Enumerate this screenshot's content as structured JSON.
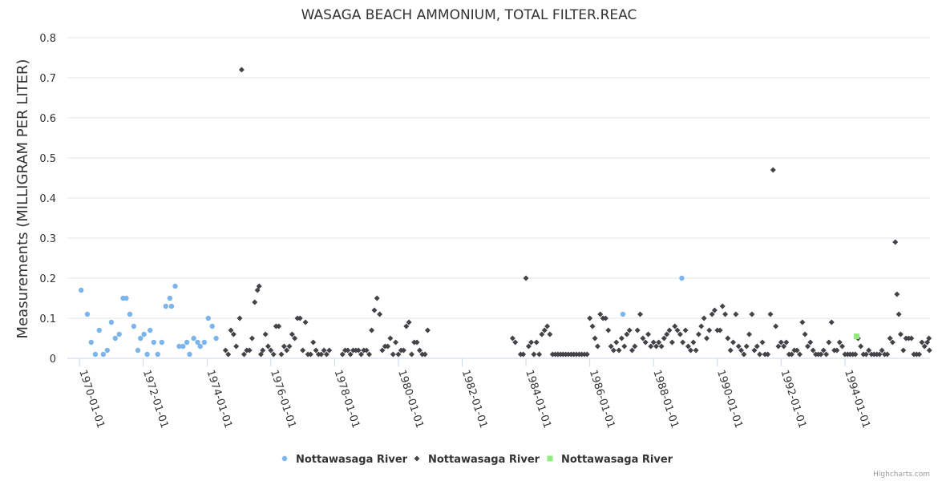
{
  "chart_data": {
    "type": "scatter",
    "title": "WASAGA BEACH AMMONIUM, TOTAL FILTER.REAC",
    "ylabel": "Measurements (MILLIGRAM PER LITER)",
    "xlabel": "",
    "ylim": [
      0,
      0.8
    ],
    "y_ticks": [
      "0",
      "0.1",
      "0.2",
      "0.3",
      "0.4",
      "0.5",
      "0.6",
      "0.7",
      "0.8"
    ],
    "x_ticks": [
      "1970-01-01",
      "1972-01-01",
      "1974-01-01",
      "1976-01-01",
      "1978-01-01",
      "1980-01-01",
      "1982-01-01",
      "1984-01-01",
      "1986-01-01",
      "1988-01-01",
      "1990-01-01",
      "1992-01-01",
      "1994-01-01"
    ],
    "xlim": [
      "1969-08-15",
      "1996-09-01"
    ],
    "grid": true,
    "legend": "bottom-center",
    "series": [
      {
        "name": "Nottawasaga River",
        "marker": "circle",
        "color": "#7cb5ec",
        "points": [
          [
            "1970-01-20",
            0.17
          ],
          [
            "1970-04-01",
            0.11
          ],
          [
            "1970-05-15",
            0.04
          ],
          [
            "1970-07-01",
            0.01
          ],
          [
            "1970-08-15",
            0.07
          ],
          [
            "1970-10-01",
            0.01
          ],
          [
            "1970-11-15",
            0.02
          ],
          [
            "1971-01-01",
            0.09
          ],
          [
            "1971-02-15",
            0.05
          ],
          [
            "1971-04-01",
            0.06
          ],
          [
            "1971-05-15",
            0.15
          ],
          [
            "1971-06-20",
            0.15
          ],
          [
            "1971-08-01",
            0.11
          ],
          [
            "1971-09-15",
            0.08
          ],
          [
            "1971-11-01",
            0.02
          ],
          [
            "1971-12-01",
            0.05
          ],
          [
            "1972-01-10",
            0.06
          ],
          [
            "1972-02-15",
            0.01
          ],
          [
            "1972-03-20",
            0.07
          ],
          [
            "1972-05-01",
            0.04
          ],
          [
            "1972-06-15",
            0.01
          ],
          [
            "1972-08-01",
            0.04
          ],
          [
            "1972-09-15",
            0.13
          ],
          [
            "1972-11-01",
            0.15
          ],
          [
            "1972-11-20",
            0.13
          ],
          [
            "1973-01-01",
            0.18
          ],
          [
            "1973-02-15",
            0.03
          ],
          [
            "1973-04-01",
            0.03
          ],
          [
            "1973-05-15",
            0.04
          ],
          [
            "1973-06-15",
            0.01
          ],
          [
            "1973-08-01",
            0.05
          ],
          [
            "1973-09-15",
            0.04
          ],
          [
            "1973-10-15",
            0.03
          ],
          [
            "1973-12-01",
            0.04
          ],
          [
            "1974-01-15",
            0.1
          ],
          [
            "1974-03-01",
            0.08
          ],
          [
            "1974-04-15",
            0.05
          ],
          [
            "1987-01-15",
            0.11
          ],
          [
            "1988-11-20",
            0.2
          ]
        ]
      },
      {
        "name": "Nottawasaga River",
        "marker": "diamond",
        "color": "#434348",
        "points": [
          [
            "1974-08-01",
            0.02
          ],
          [
            "1974-09-01",
            0.01
          ],
          [
            "1974-10-01",
            0.07
          ],
          [
            "1974-11-01",
            0.06
          ],
          [
            "1974-12-01",
            0.03
          ],
          [
            "1975-01-10",
            0.1
          ],
          [
            "1975-02-01",
            0.72
          ],
          [
            "1975-03-01",
            0.01
          ],
          [
            "1975-04-01",
            0.02
          ],
          [
            "1975-05-01",
            0.02
          ],
          [
            "1975-06-01",
            0.05
          ],
          [
            "1975-07-01",
            0.14
          ],
          [
            "1975-08-01",
            0.17
          ],
          [
            "1975-08-20",
            0.18
          ],
          [
            "1975-09-10",
            0.01
          ],
          [
            "1975-10-01",
            0.02
          ],
          [
            "1975-11-01",
            0.06
          ],
          [
            "1975-12-01",
            0.03
          ],
          [
            "1976-01-01",
            0.02
          ],
          [
            "1976-02-01",
            0.01
          ],
          [
            "1976-03-01",
            0.08
          ],
          [
            "1976-04-01",
            0.08
          ],
          [
            "1976-05-01",
            0.01
          ],
          [
            "1976-06-01",
            0.03
          ],
          [
            "1976-07-01",
            0.02
          ],
          [
            "1976-08-01",
            0.03
          ],
          [
            "1976-09-01",
            0.06
          ],
          [
            "1976-10-01",
            0.05
          ],
          [
            "1976-11-01",
            0.1
          ],
          [
            "1976-12-01",
            0.1
          ],
          [
            "1977-01-01",
            0.02
          ],
          [
            "1977-02-01",
            0.09
          ],
          [
            "1977-03-01",
            0.01
          ],
          [
            "1977-04-01",
            0.01
          ],
          [
            "1977-05-01",
            0.04
          ],
          [
            "1977-06-01",
            0.02
          ],
          [
            "1977-07-01",
            0.01
          ],
          [
            "1977-08-01",
            0.01
          ],
          [
            "1977-09-01",
            0.02
          ],
          [
            "1977-10-01",
            0.01
          ],
          [
            "1977-11-01",
            0.02
          ],
          [
            "1978-04-01",
            0.01
          ],
          [
            "1978-05-01",
            0.02
          ],
          [
            "1978-06-01",
            0.02
          ],
          [
            "1978-07-01",
            0.01
          ],
          [
            "1978-08-01",
            0.02
          ],
          [
            "1978-09-01",
            0.02
          ],
          [
            "1978-10-01",
            0.02
          ],
          [
            "1978-11-01",
            0.01
          ],
          [
            "1978-12-01",
            0.02
          ],
          [
            "1979-01-01",
            0.02
          ],
          [
            "1979-02-01",
            0.01
          ],
          [
            "1979-03-01",
            0.07
          ],
          [
            "1979-04-01",
            0.12
          ],
          [
            "1979-05-01",
            0.15
          ],
          [
            "1979-06-01",
            0.11
          ],
          [
            "1979-07-01",
            0.02
          ],
          [
            "1979-08-01",
            0.03
          ],
          [
            "1979-09-01",
            0.03
          ],
          [
            "1979-10-01",
            0.05
          ],
          [
            "1979-11-01",
            0.01
          ],
          [
            "1979-12-01",
            0.04
          ],
          [
            "1980-01-01",
            0.01
          ],
          [
            "1980-02-01",
            0.02
          ],
          [
            "1980-03-01",
            0.02
          ],
          [
            "1980-04-01",
            0.08
          ],
          [
            "1980-05-01",
            0.09
          ],
          [
            "1980-06-01",
            0.01
          ],
          [
            "1980-07-01",
            0.04
          ],
          [
            "1980-08-01",
            0.04
          ],
          [
            "1980-09-01",
            0.02
          ],
          [
            "1980-10-01",
            0.01
          ],
          [
            "1980-11-01",
            0.01
          ],
          [
            "1980-12-01",
            0.07
          ],
          [
            "1983-08-01",
            0.05
          ],
          [
            "1983-09-01",
            0.04
          ],
          [
            "1983-11-01",
            0.01
          ],
          [
            "1983-12-01",
            0.01
          ],
          [
            "1984-01-01",
            0.2
          ],
          [
            "1984-02-01",
            0.03
          ],
          [
            "1984-03-01",
            0.04
          ],
          [
            "1984-04-01",
            0.01
          ],
          [
            "1984-05-01",
            0.04
          ],
          [
            "1984-06-01",
            0.01
          ],
          [
            "1984-07-01",
            0.06
          ],
          [
            "1984-08-01",
            0.07
          ],
          [
            "1984-09-01",
            0.08
          ],
          [
            "1984-10-01",
            0.06
          ],
          [
            "1984-11-01",
            0.01
          ],
          [
            "1984-12-01",
            0.01
          ],
          [
            "1985-01-01",
            0.01
          ],
          [
            "1985-02-01",
            0.01
          ],
          [
            "1985-03-01",
            0.01
          ],
          [
            "1985-04-01",
            0.01
          ],
          [
            "1985-05-01",
            0.01
          ],
          [
            "1985-06-01",
            0.01
          ],
          [
            "1985-07-01",
            0.01
          ],
          [
            "1985-08-01",
            0.01
          ],
          [
            "1985-09-01",
            0.01
          ],
          [
            "1985-10-01",
            0.01
          ],
          [
            "1985-11-01",
            0.01
          ],
          [
            "1985-12-01",
            0.01
          ],
          [
            "1986-01-01",
            0.1
          ],
          [
            "1986-02-01",
            0.08
          ],
          [
            "1986-03-01",
            0.05
          ],
          [
            "1986-04-01",
            0.03
          ],
          [
            "1986-05-01",
            0.11
          ],
          [
            "1986-06-01",
            0.1
          ],
          [
            "1986-07-01",
            0.1
          ],
          [
            "1986-08-01",
            0.07
          ],
          [
            "1986-09-01",
            0.03
          ],
          [
            "1986-10-01",
            0.02
          ],
          [
            "1986-11-01",
            0.04
          ],
          [
            "1986-12-01",
            0.02
          ],
          [
            "1987-01-01",
            0.05
          ],
          [
            "1987-02-01",
            0.03
          ],
          [
            "1987-03-01",
            0.06
          ],
          [
            "1987-04-01",
            0.07
          ],
          [
            "1987-05-01",
            0.02
          ],
          [
            "1987-06-01",
            0.03
          ],
          [
            "1987-07-01",
            0.07
          ],
          [
            "1987-08-01",
            0.11
          ],
          [
            "1987-09-01",
            0.05
          ],
          [
            "1987-10-01",
            0.04
          ],
          [
            "1987-11-01",
            0.06
          ],
          [
            "1987-12-01",
            0.03
          ],
          [
            "1988-01-01",
            0.04
          ],
          [
            "1988-02-01",
            0.03
          ],
          [
            "1988-03-01",
            0.04
          ],
          [
            "1988-04-01",
            0.03
          ],
          [
            "1988-05-01",
            0.05
          ],
          [
            "1988-06-01",
            0.06
          ],
          [
            "1988-07-01",
            0.07
          ],
          [
            "1988-08-01",
            0.04
          ],
          [
            "1988-09-01",
            0.08
          ],
          [
            "1988-10-01",
            0.07
          ],
          [
            "1988-11-01",
            0.06
          ],
          [
            "1988-12-01",
            0.04
          ],
          [
            "1989-01-01",
            0.07
          ],
          [
            "1989-02-01",
            0.03
          ],
          [
            "1989-03-01",
            0.02
          ],
          [
            "1989-04-01",
            0.04
          ],
          [
            "1989-05-01",
            0.02
          ],
          [
            "1989-06-01",
            0.06
          ],
          [
            "1989-07-01",
            0.08
          ],
          [
            "1989-08-01",
            0.1
          ],
          [
            "1989-09-01",
            0.05
          ],
          [
            "1989-10-01",
            0.07
          ],
          [
            "1989-11-01",
            0.11
          ],
          [
            "1989-12-01",
            0.12
          ],
          [
            "1990-01-01",
            0.07
          ],
          [
            "1990-02-01",
            0.07
          ],
          [
            "1990-03-01",
            0.13
          ],
          [
            "1990-04-01",
            0.11
          ],
          [
            "1990-05-01",
            0.05
          ],
          [
            "1990-06-01",
            0.02
          ],
          [
            "1990-07-01",
            0.04
          ],
          [
            "1990-08-01",
            0.11
          ],
          [
            "1990-09-01",
            0.03
          ],
          [
            "1990-10-01",
            0.02
          ],
          [
            "1990-11-01",
            0.01
          ],
          [
            "1990-12-01",
            0.03
          ],
          [
            "1991-01-01",
            0.06
          ],
          [
            "1991-02-01",
            0.11
          ],
          [
            "1991-03-01",
            0.02
          ],
          [
            "1991-04-01",
            0.03
          ],
          [
            "1991-05-01",
            0.01
          ],
          [
            "1991-06-01",
            0.04
          ],
          [
            "1991-07-01",
            0.01
          ],
          [
            "1991-08-01",
            0.01
          ],
          [
            "1991-09-01",
            0.11
          ],
          [
            "1991-10-01",
            0.47
          ],
          [
            "1991-11-01",
            0.08
          ],
          [
            "1991-12-01",
            0.03
          ],
          [
            "1992-01-01",
            0.04
          ],
          [
            "1992-02-01",
            0.03
          ],
          [
            "1992-03-01",
            0.04
          ],
          [
            "1992-04-01",
            0.01
          ],
          [
            "1992-05-01",
            0.01
          ],
          [
            "1992-06-01",
            0.02
          ],
          [
            "1992-07-01",
            0.02
          ],
          [
            "1992-08-01",
            0.01
          ],
          [
            "1992-09-01",
            0.09
          ],
          [
            "1992-10-01",
            0.06
          ],
          [
            "1992-11-01",
            0.03
          ],
          [
            "1992-12-01",
            0.04
          ],
          [
            "1993-01-01",
            0.02
          ],
          [
            "1993-02-01",
            0.01
          ],
          [
            "1993-03-01",
            0.01
          ],
          [
            "1993-04-01",
            0.01
          ],
          [
            "1993-05-01",
            0.02
          ],
          [
            "1993-06-01",
            0.01
          ],
          [
            "1993-07-01",
            0.04
          ],
          [
            "1993-08-01",
            0.09
          ],
          [
            "1993-09-01",
            0.02
          ],
          [
            "1993-10-01",
            0.02
          ],
          [
            "1993-11-01",
            0.04
          ],
          [
            "1993-12-01",
            0.03
          ],
          [
            "1994-01-01",
            0.01
          ],
          [
            "1994-02-01",
            0.01
          ],
          [
            "1994-03-01",
            0.01
          ],
          [
            "1994-04-01",
            0.01
          ],
          [
            "1994-05-01",
            0.01
          ],
          [
            "1994-06-01",
            0.05
          ],
          [
            "1994-07-01",
            0.03
          ],
          [
            "1994-08-01",
            0.01
          ],
          [
            "1994-09-01",
            0.01
          ],
          [
            "1994-10-01",
            0.02
          ],
          [
            "1994-11-01",
            0.01
          ],
          [
            "1994-12-01",
            0.01
          ],
          [
            "1995-01-01",
            0.01
          ],
          [
            "1995-02-01",
            0.01
          ],
          [
            "1995-03-01",
            0.02
          ],
          [
            "1995-04-01",
            0.01
          ],
          [
            "1995-05-01",
            0.01
          ],
          [
            "1995-06-01",
            0.05
          ],
          [
            "1995-07-01",
            0.04
          ],
          [
            "1995-08-01",
            0.29
          ],
          [
            "1995-08-20",
            0.16
          ],
          [
            "1995-09-10",
            0.11
          ],
          [
            "1995-10-01",
            0.06
          ],
          [
            "1995-11-01",
            0.02
          ],
          [
            "1995-12-01",
            0.05
          ],
          [
            "1996-01-01",
            0.05
          ],
          [
            "1996-02-01",
            0.05
          ],
          [
            "1996-03-01",
            0.01
          ],
          [
            "1996-04-01",
            0.01
          ],
          [
            "1996-05-01",
            0.01
          ],
          [
            "1996-06-01",
            0.04
          ],
          [
            "1996-07-01",
            0.03
          ],
          [
            "1996-08-01",
            0.04
          ],
          [
            "1996-08-20",
            0.05
          ],
          [
            "1996-08-25",
            0.02
          ]
        ]
      },
      {
        "name": "Nottawasaga River",
        "marker": "square",
        "color": "#90ed7d",
        "points": [
          [
            "1994-05-15",
            0.055
          ]
        ]
      }
    ]
  },
  "credit": "Highcharts.com"
}
